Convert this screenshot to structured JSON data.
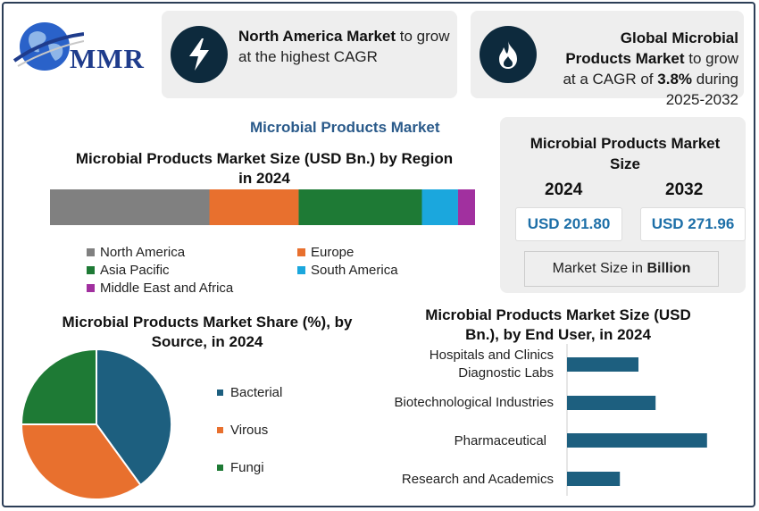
{
  "logo": {
    "text": "MMR"
  },
  "card1": {
    "bold": "North America Market",
    "rest": " to grow at the highest CAGR"
  },
  "card2": {
    "bold1": "Global Microbial Products Market",
    "mid": " to grow at a CAGR of ",
    "bold2": "3.8%",
    "tail": " during 2025-2032"
  },
  "section_title": "Microbial Products Market",
  "size_panel": {
    "title": "Microbial Products Market Size",
    "year1": "2024",
    "year2": "2032",
    "value1": "USD 201.80",
    "value2": "USD 271.96",
    "unit_prefix": "Market Size in ",
    "unit_bold": "Billion"
  },
  "colors": {
    "north_america": "#808080",
    "europe": "#e8702e",
    "asia_pacific": "#1e7a35",
    "south_america": "#1ba7dd",
    "mea": "#a1309f",
    "bacterial": "#1d5f7f",
    "virous": "#e8702e",
    "fungi": "#1e7a35",
    "bar": "#1d5f7f",
    "icon_bg": "#0d2a3d"
  },
  "chart_data": [
    {
      "type": "bar",
      "title": "Microbial Products Market Size (USD Bn.) by Region in 2024",
      "stacked": true,
      "orientation": "horizontal",
      "series": [
        {
          "name": "North America",
          "values": [
            37.5
          ]
        },
        {
          "name": "Europe",
          "values": [
            21
          ]
        },
        {
          "name": "Asia Pacific",
          "values": [
            29
          ]
        },
        {
          "name": "South America",
          "values": [
            8.5
          ]
        },
        {
          "name": "Middle East and Africa",
          "values": [
            4
          ]
        }
      ]
    },
    {
      "type": "pie",
      "title": "Microbial Products Market Share (%), by Source, in 2024",
      "labels": [
        "Bacterial",
        "Virous",
        "Fungi"
      ],
      "values": [
        40,
        35,
        25
      ]
    },
    {
      "type": "bar",
      "title": "Microbial Products Market Size (USD Bn.), by End User, in 2024",
      "orientation": "horizontal",
      "categories": [
        "Hospitals and Clinics Diagnostic Labs",
        "Biotechnological Industries",
        "Pharmaceutical",
        "Research and Academics"
      ],
      "values": [
        50,
        62,
        98,
        37
      ]
    }
  ]
}
